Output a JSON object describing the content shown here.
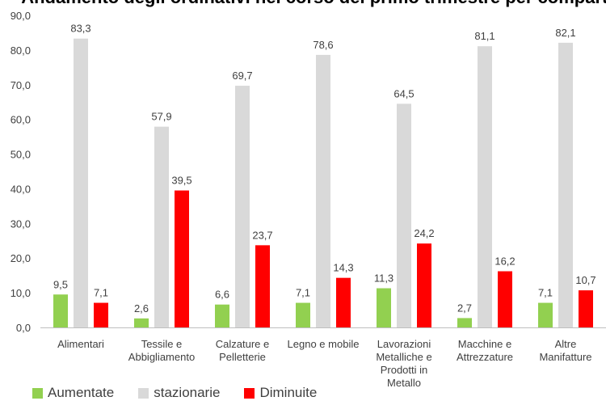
{
  "chart_data": {
    "type": "bar",
    "title": "Andamento degli ordinativi nel corso del primo trimestre per comparto",
    "categories": [
      [
        "Alimentari"
      ],
      [
        "Tessile e",
        "Abbigliamento"
      ],
      [
        "Calzature e",
        "Pelletterie"
      ],
      [
        "Legno e mobile"
      ],
      [
        "Lavorazioni",
        "Metalliche e",
        "Prodotti in",
        "Metallo"
      ],
      [
        "Macchine e",
        "Attrezzature"
      ],
      [
        "Altre",
        "Manifatture"
      ]
    ],
    "series": [
      {
        "name": "Aumentate",
        "color": "#92d050",
        "values": [
          9.5,
          2.6,
          6.6,
          7.1,
          11.3,
          2.7,
          7.1
        ]
      },
      {
        "name": "stazionarie",
        "color": "#d9d9d9",
        "values": [
          83.3,
          57.9,
          69.7,
          78.6,
          64.5,
          81.1,
          82.1
        ]
      },
      {
        "name": "Diminuite",
        "color": "#ff0000",
        "values": [
          7.1,
          39.5,
          23.7,
          14.3,
          24.2,
          16.2,
          10.7
        ]
      }
    ],
    "yticks": [
      "0,0",
      "10,0",
      "20,0",
      "30,0",
      "40,0",
      "50,0",
      "60,0",
      "70,0",
      "80,0",
      "90,0"
    ],
    "ylim": [
      0,
      90
    ],
    "grid": false,
    "legend_position": "bottom-left",
    "decimal_separator": ","
  }
}
